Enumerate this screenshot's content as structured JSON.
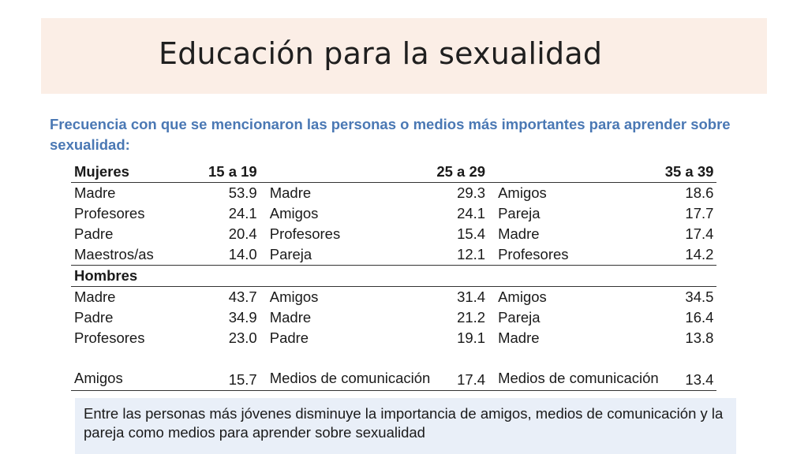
{
  "title": "Educación para la sexualidad",
  "subtitle": "Frecuencia  con que se mencionaron las personas o medios más importantes para aprender sobre sexualidad:",
  "table": {
    "women_label": "Mujeres",
    "men_label": "Hombres",
    "age_groups": [
      "15 a 19",
      "25 a 29",
      "35 a 39"
    ],
    "women_rows": [
      [
        [
          "Madre",
          "53.9"
        ],
        [
          "Madre",
          "29.3"
        ],
        [
          "Amigos",
          "18.6"
        ]
      ],
      [
        [
          "Profesores",
          "24.1"
        ],
        [
          "Amigos",
          "24.1"
        ],
        [
          "Pareja",
          "17.7"
        ]
      ],
      [
        [
          "Padre",
          "20.4"
        ],
        [
          "Profesores",
          "15.4"
        ],
        [
          "Madre",
          "17.4"
        ]
      ],
      [
        [
          "Maestros/as",
          "14.0"
        ],
        [
          "Pareja",
          "12.1"
        ],
        [
          "Profesores",
          "14.2"
        ]
      ]
    ],
    "men_rows": [
      [
        [
          "Madre",
          "43.7"
        ],
        [
          "Amigos",
          "31.4"
        ],
        [
          "Amigos",
          "34.5"
        ]
      ],
      [
        [
          "Padre",
          "34.9"
        ],
        [
          "Madre",
          "21.2"
        ],
        [
          "Pareja",
          "16.4"
        ]
      ],
      [
        [
          "Profesores",
          "23.0"
        ],
        [
          "Padre",
          "19.1"
        ],
        [
          "Madre",
          "13.8"
        ]
      ],
      [
        [
          "Amigos",
          "15.7"
        ],
        [
          "Medios de comunicación",
          "17.4"
        ],
        [
          "Medios de comunicación",
          "13.4"
        ]
      ]
    ]
  },
  "note": "Entre las personas más jóvenes disminuye la importancia de amigos, medios de comunicación y la pareja como medios para aprender sobre sexualidad"
}
